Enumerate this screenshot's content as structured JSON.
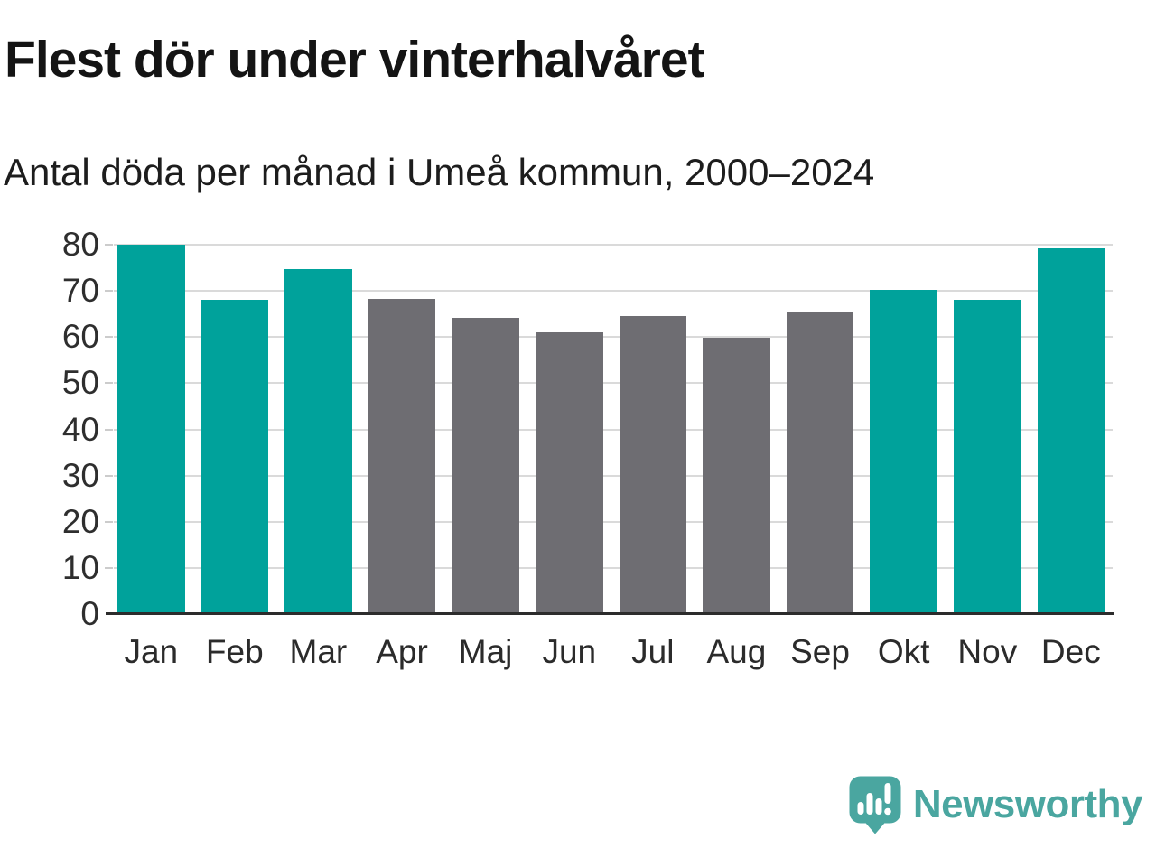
{
  "chart_data": {
    "type": "bar",
    "title": "Flest dör under vinterhalvåret",
    "subtitle": "Antal döda per månad i Umeå kommun, 2000–2024",
    "categories": [
      "Jan",
      "Feb",
      "Mar",
      "Apr",
      "Maj",
      "Jun",
      "Jul",
      "Aug",
      "Sep",
      "Okt",
      "Nov",
      "Dec"
    ],
    "values": [
      80.1,
      68.0,
      74.7,
      68.3,
      64.1,
      61.1,
      64.5,
      59.9,
      65.6,
      70.3,
      68.1,
      79.2
    ],
    "bar_colors": [
      "#00a29b",
      "#00a29b",
      "#00a29b",
      "#6e6d72",
      "#6e6d72",
      "#6e6d72",
      "#6e6d72",
      "#6e6d72",
      "#6e6d72",
      "#00a29b",
      "#00a29b",
      "#00a29b"
    ],
    "highlight_color": "#00a29b",
    "muted_color": "#6e6d72",
    "xlabel": "",
    "ylabel": "",
    "ylim": [
      0,
      80
    ],
    "yticks": [
      0,
      10,
      20,
      30,
      40,
      50,
      60,
      70,
      80
    ],
    "grid": true,
    "legend_position": "none"
  },
  "brand": {
    "name": "Newsworthy",
    "icon": "speech-bubble-bar-chart-icon",
    "color": "#4aa6a0"
  }
}
